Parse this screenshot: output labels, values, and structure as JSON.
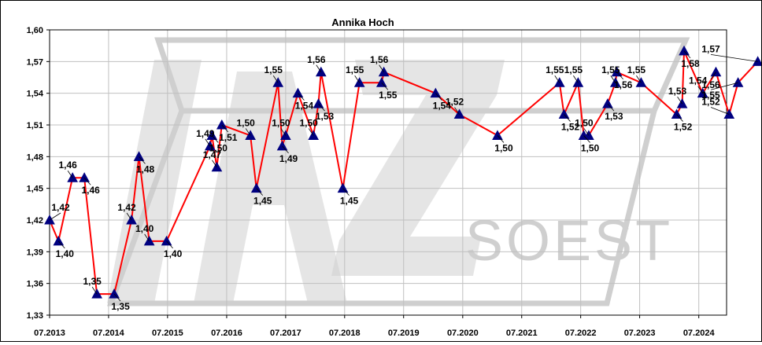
{
  "chart_data": {
    "type": "line",
    "title": "Annika Hoch",
    "xlabel": "",
    "ylabel": "",
    "ylim": [
      1.33,
      1.6
    ],
    "yticks": [
      "1,33",
      "1,36",
      "1,39",
      "1,42",
      "1,45",
      "1,48",
      "1,51",
      "1,54",
      "1,57",
      "1,60"
    ],
    "ytick_values": [
      1.33,
      1.36,
      1.39,
      1.42,
      1.45,
      1.48,
      1.51,
      1.54,
      1.57,
      1.6
    ],
    "xlim": [
      "2013-07-01",
      "2024-12-20"
    ],
    "xticks": [
      "07.2013",
      "07.2014",
      "07.2015",
      "07.2016",
      "07.2017",
      "07.2018",
      "07.2019",
      "07.2020",
      "07.2021",
      "07.2022",
      "07.2023",
      "07.2024"
    ],
    "xtick_dates": [
      "2013-07-01",
      "2014-07-01",
      "2015-07-01",
      "2016-07-01",
      "2017-07-01",
      "2018-07-01",
      "2019-07-01",
      "2020-07-01",
      "2021-07-01",
      "2022-07-01",
      "2023-07-01",
      "2024-07-01"
    ],
    "grid": true,
    "legend": "none",
    "colors": {
      "line": "#ff0000",
      "marker": "#000080",
      "grid": "#c0c0c0",
      "watermark": "#cfcfcf"
    },
    "watermark_text": "LAZ SOEST",
    "series": [
      {
        "marker": "triangle",
        "points": [
          {
            "x": "2013-07-01",
            "y": 1.42,
            "label": "1,42"
          },
          {
            "x": "2013-08-25",
            "y": 1.4,
            "label": "1,40"
          },
          {
            "x": "2013-11-20",
            "y": 1.46,
            "label": "1,46"
          },
          {
            "x": "2014-02-01",
            "y": 1.46,
            "label": "1,46"
          },
          {
            "x": "2014-04-20",
            "y": 1.35,
            "label": "1,35"
          },
          {
            "x": "2014-08-05",
            "y": 1.35,
            "label": "1,35"
          },
          {
            "x": "2014-11-20",
            "y": 1.42,
            "label": "1,42"
          },
          {
            "x": "2015-01-05",
            "y": 1.48,
            "label": "1,48"
          },
          {
            "x": "2015-03-10",
            "y": 1.4,
            "label": "1,40"
          },
          {
            "x": "2015-06-25",
            "y": 1.4,
            "label": "1,40"
          },
          {
            "x": "2016-03-20",
            "y": 1.49,
            "label": "1,49"
          },
          {
            "x": "2016-04-01",
            "y": 1.5,
            "label": "1,50"
          },
          {
            "x": "2016-05-01",
            "y": 1.47,
            "label": "1,47"
          },
          {
            "x": "2016-06-01",
            "y": 1.51,
            "label": "1,51"
          },
          {
            "x": "2016-11-25",
            "y": 1.5,
            "label": "1,50"
          },
          {
            "x": "2017-01-01",
            "y": 1.45,
            "label": "1,45"
          },
          {
            "x": "2017-05-15",
            "y": 1.55,
            "label": "1,55"
          },
          {
            "x": "2017-06-10",
            "y": 1.49,
            "label": "1,49"
          },
          {
            "x": "2017-07-01",
            "y": 1.5,
            "label": "1,50"
          },
          {
            "x": "2017-09-15",
            "y": 1.54,
            "label": "1,54"
          },
          {
            "x": "2017-12-20",
            "y": 1.5,
            "label": "1,50"
          },
          {
            "x": "2018-01-20",
            "y": 1.53,
            "label": "1,53"
          },
          {
            "x": "2018-02-05",
            "y": 1.56,
            "label": "1,56"
          },
          {
            "x": "2018-06-20",
            "y": 1.45,
            "label": "1,45"
          },
          {
            "x": "2018-10-01",
            "y": 1.55,
            "label": "1,55"
          },
          {
            "x": "2019-02-15",
            "y": 1.55,
            "label": "1,55"
          },
          {
            "x": "2019-03-01",
            "y": 1.56,
            "label": "1,56"
          },
          {
            "x": "2020-01-15",
            "y": 1.54,
            "label": "1,54"
          },
          {
            "x": "2020-06-10",
            "y": 1.52,
            "label": "1,52"
          },
          {
            "x": "2021-02-01",
            "y": 1.5,
            "label": "1,50"
          },
          {
            "x": "2022-02-20",
            "y": 1.55,
            "label": "1,55"
          },
          {
            "x": "2022-03-20",
            "y": 1.52,
            "label": "1,52"
          },
          {
            "x": "2022-06-15",
            "y": 1.55,
            "label": "1,55"
          },
          {
            "x": "2022-07-20",
            "y": 1.5,
            "label": "1,50"
          },
          {
            "x": "2022-08-20",
            "y": 1.5,
            "label": "1,50"
          },
          {
            "x": "2022-12-15",
            "y": 1.53,
            "label": "1,53"
          },
          {
            "x": "2023-02-01",
            "y": 1.55,
            "label": "1,55"
          },
          {
            "x": "2023-02-10",
            "y": 1.56,
            "label": "1,56"
          },
          {
            "x": "2023-07-10",
            "y": 1.55,
            "label": "1,55"
          },
          {
            "x": "2024-02-15",
            "y": 1.52,
            "label": "1,52"
          },
          {
            "x": "2024-03-20",
            "y": 1.53,
            "label": "1,53"
          },
          {
            "x": "2024-04-01",
            "y": 1.58,
            "label": "1,58"
          },
          {
            "x": "2024-07-25",
            "y": 1.54,
            "label": "1,54"
          },
          {
            "x": "2024-10-15",
            "y": 1.56,
            "label": "1,56"
          },
          {
            "x": "2025-01-05",
            "y": 1.52,
            "label": "1,52"
          },
          {
            "x": "2025-03-01",
            "y": 1.55,
            "label": "1,55"
          },
          {
            "x": "2025-07-01",
            "y": 1.57,
            "label": "1,57"
          }
        ]
      }
    ]
  }
}
